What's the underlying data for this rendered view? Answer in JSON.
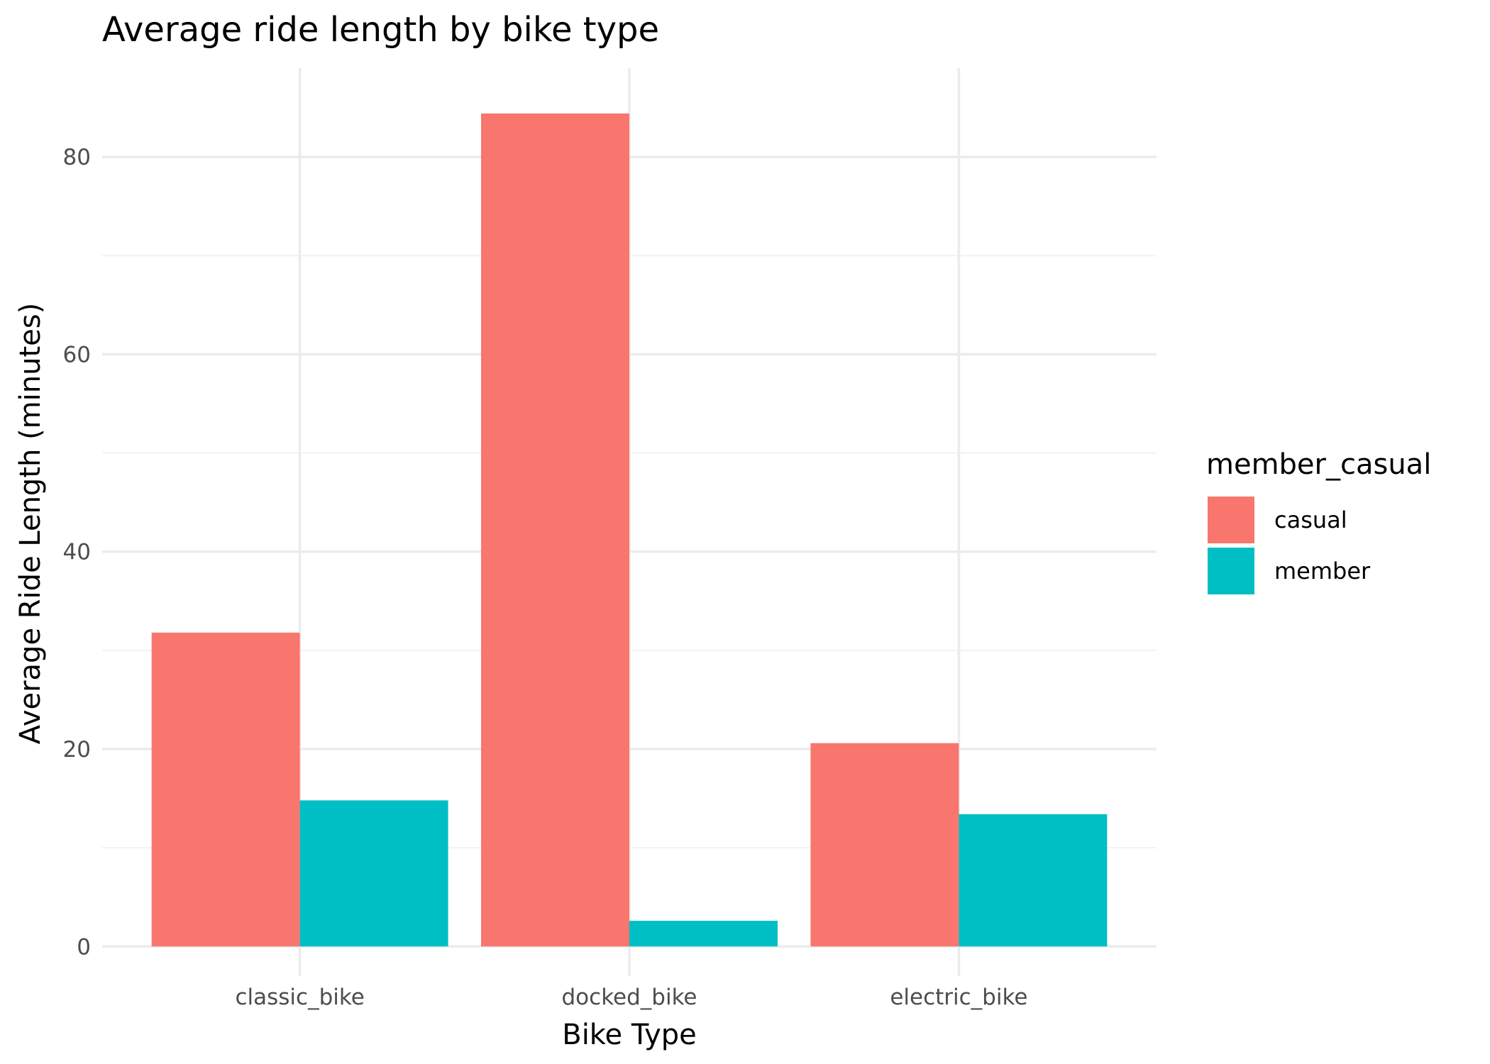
{
  "chart_data": {
    "type": "bar",
    "title": "Average ride length by bike type",
    "xlabel": "Bike Type",
    "ylabel": "Average Ride Length (minutes)",
    "categories": [
      "classic_bike",
      "docked_bike",
      "electric_bike"
    ],
    "series": [
      {
        "name": "casual",
        "color": "#F8766D",
        "values": [
          31.8,
          84.4,
          20.6
        ]
      },
      {
        "name": "member",
        "color": "#00BFC4",
        "values": [
          14.8,
          2.6,
          13.4
        ]
      }
    ],
    "ylim": [
      -3,
      89
    ],
    "yticks": [
      0,
      20,
      40,
      60,
      80
    ],
    "ytick_labels": [
      "0",
      "20",
      "40",
      "60",
      "80"
    ],
    "grid": true,
    "legend": {
      "title": "member_casual",
      "position": "right",
      "entries": [
        "casual",
        "member"
      ]
    }
  }
}
